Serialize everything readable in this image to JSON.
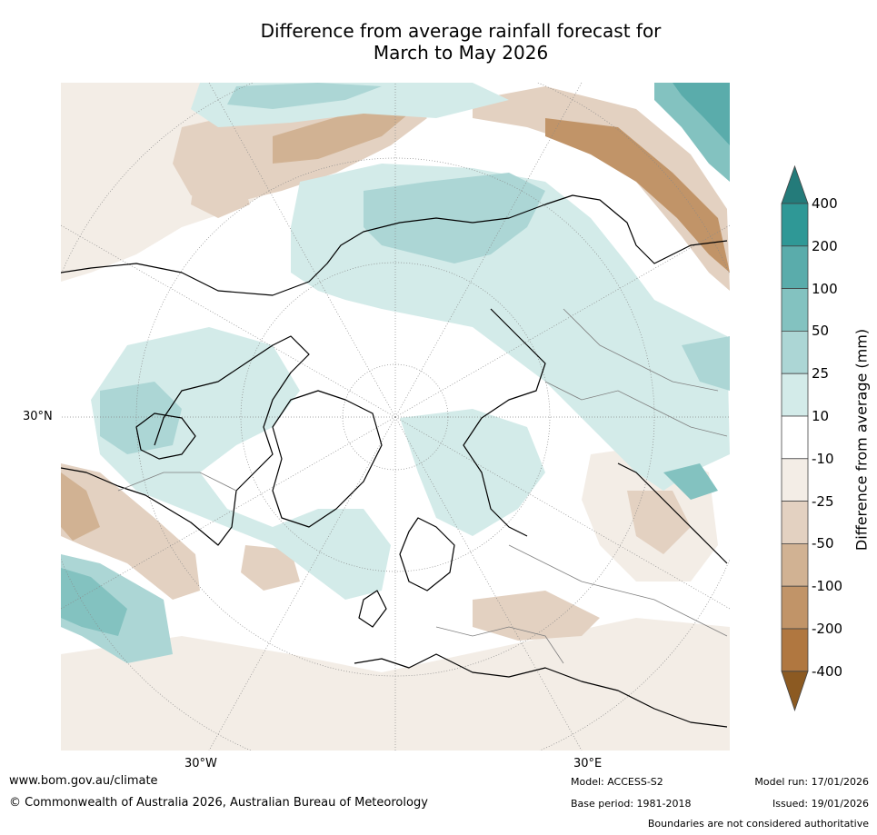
{
  "title_line1": "Difference from average rainfall forecast for",
  "title_line2": "March to May 2026",
  "map": {
    "grid_labels": {
      "lat_30n": "30°N",
      "lon_30w": "30°W",
      "lon_30e": "30°E"
    },
    "colors": {
      "land_coast": "#000000",
      "borders": "#7f7f7f",
      "wet_1": "#d3ebe9",
      "wet_2": "#acd6d5",
      "wet_3": "#83c2c0",
      "wet_4": "#5aacab",
      "wet_5": "#2f9896",
      "dry_1": "#f3ede6",
      "dry_2": "#e3d1c1",
      "dry_3": "#d1b293",
      "dry_4": "#c19468",
      "dry_5": "#b07740"
    }
  },
  "colorbar": {
    "label": "Difference from average (mm)",
    "ticks": [
      "400",
      "200",
      "100",
      "50",
      "25",
      "10",
      "-10",
      "-25",
      "-50",
      "-100",
      "-200",
      "-400"
    ],
    "colors": [
      "#247b7a",
      "#2f9896",
      "#5aacab",
      "#83c2c0",
      "#acd6d5",
      "#d3ebe9",
      "#ffffff",
      "#f3ede6",
      "#e3d1c1",
      "#d1b293",
      "#c19468",
      "#b07740",
      "#8c5a22"
    ]
  },
  "footer": {
    "url": "www.bom.gov.au/climate",
    "copyright": "© Commonwealth of Australia 2026, Australian Bureau of Meteorology",
    "model": "Model: ACCESS-S2",
    "base_period": "Base period: 1981-2018",
    "model_run": "Model run: 17/01/2026",
    "issued": "Issued: 19/01/2026",
    "disclaimer": "Boundaries are not considered authoritative"
  }
}
